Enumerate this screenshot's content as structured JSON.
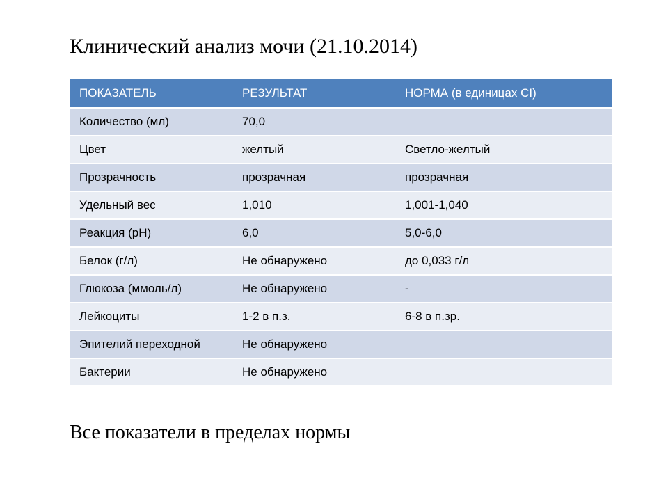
{
  "title": "Клинический анализ мочи (21.10.2014)",
  "table": {
    "headers": {
      "col1": "ПОКАЗАТЕЛЬ",
      "col2": "РЕЗУЛЬТАТ",
      "col3": "НОРМА (в единицах СI)"
    },
    "header_bg": "#4f81bd",
    "header_fg": "#ffffff",
    "row_odd_bg": "#d0d8e8",
    "row_even_bg": "#e9edf4",
    "border_color": "#ffffff",
    "font_family": "Arial",
    "font_size_pt": 13,
    "rows": [
      {
        "param": "Количество (мл)",
        "result": "70,0",
        "norm": ""
      },
      {
        "param": "Цвет",
        "result": "желтый",
        "norm": "Светло-желтый"
      },
      {
        "param": "Прозрачность",
        "result": "прозрачная",
        "norm": "прозрачная"
      },
      {
        "param": "Удельный вес",
        "result": "1,010",
        "norm": "1,001-1,040"
      },
      {
        "param": "Реакция (рН)",
        "result": "6,0",
        "norm": "5,0-6,0"
      },
      {
        "param": "Белок (г/л)",
        "result": "Не обнаружено",
        "norm": "до 0,033 г/л"
      },
      {
        "param": "Глюкоза (ммоль/л)",
        "result": "Не обнаружено",
        "norm": "-"
      },
      {
        "param": "Лейкоциты",
        "result": "1-2 в п.з.",
        "norm": "6-8 в п.зр."
      },
      {
        "param": "Эпителий переходной",
        "result": "Не обнаружено",
        "norm": ""
      },
      {
        "param": "Бактерии",
        "result": "Не обнаружено",
        "norm": ""
      }
    ]
  },
  "footer": "Все показатели в пределах нормы"
}
